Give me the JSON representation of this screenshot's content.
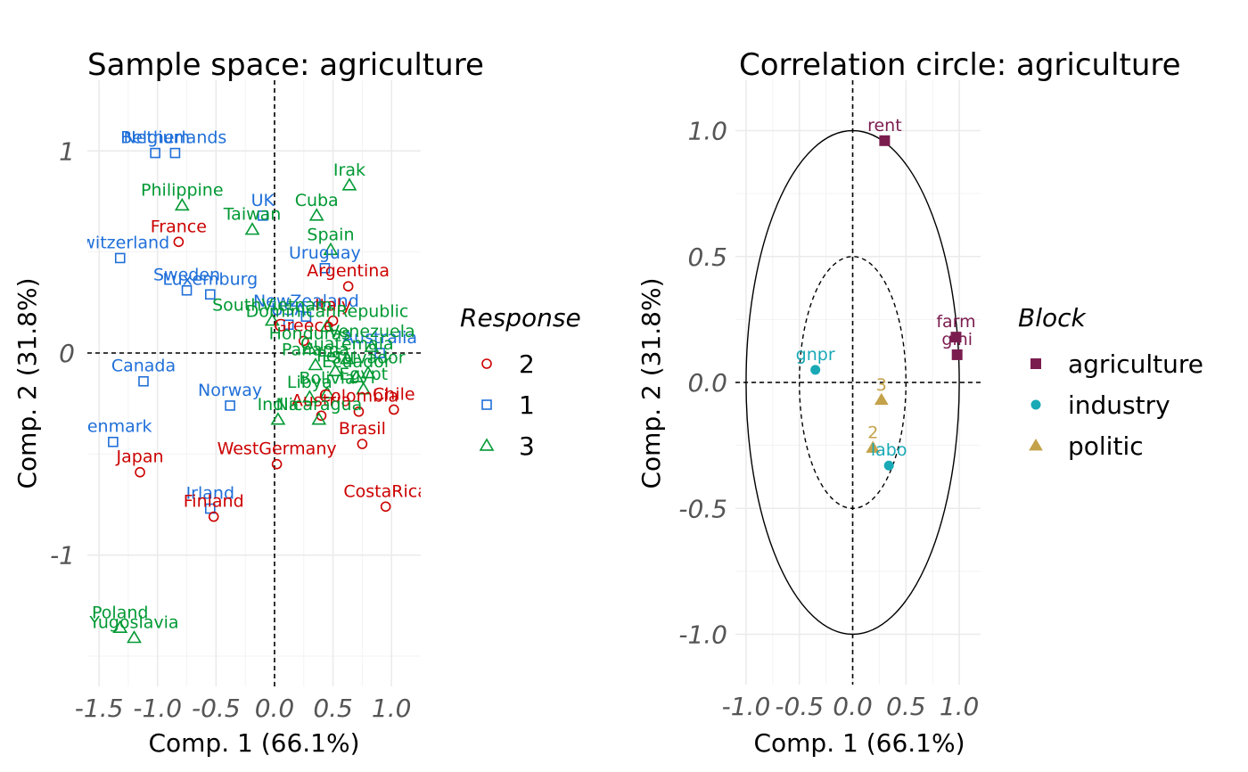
{
  "colors": {
    "response_2": "#cc0000",
    "response_1": "#1f6fd9",
    "response_3": "#009933",
    "agriculture": "#7b1c4f",
    "industry": "#19a9b6",
    "politic": "#c4a24a"
  },
  "chart_data": [
    {
      "type": "scatter",
      "title": "Sample space: agriculture",
      "xlabel": "Comp. 1 (66.1%)",
      "ylabel": "Comp. 2 (31.8%)",
      "xlim": [
        -1.6,
        1.25
      ],
      "ylim": [
        -1.65,
        1.35
      ],
      "xticks": [
        -1.5,
        -1.0,
        -0.5,
        0.0,
        0.5,
        1.0
      ],
      "xtick_labels": [
        "-1.5",
        "-1.0",
        "-0.5",
        "0.0",
        "0.5",
        "1.0"
      ],
      "yticks": [
        -1,
        0,
        1
      ],
      "ytick_labels": [
        "-1",
        "0",
        "1"
      ],
      "grid": true,
      "reference_lines": {
        "x": 0,
        "y": 0
      },
      "legend": {
        "title": "Response",
        "placement": "right",
        "entries": [
          {
            "label": "2",
            "shape": "circle",
            "color_key": "response_2"
          },
          {
            "label": "1",
            "shape": "square",
            "color_key": "response_1"
          },
          {
            "label": "3",
            "shape": "triangle",
            "color_key": "response_3"
          }
        ]
      },
      "points": [
        {
          "label": "Belgium",
          "x": -1.02,
          "y": 0.99,
          "group": "1"
        },
        {
          "label": "Netherlands",
          "x": -0.85,
          "y": 0.99,
          "group": "1"
        },
        {
          "label": "Switzerland",
          "x": -1.32,
          "y": 0.47,
          "group": "1"
        },
        {
          "label": "Sweden",
          "x": -0.75,
          "y": 0.31,
          "group": "1"
        },
        {
          "label": "Luxemburg",
          "x": -0.55,
          "y": 0.29,
          "group": "1"
        },
        {
          "label": "Canada",
          "x": -1.12,
          "y": -0.14,
          "group": "1"
        },
        {
          "label": "Norway",
          "x": -0.38,
          "y": -0.26,
          "group": "1"
        },
        {
          "label": "Denmark",
          "x": -1.38,
          "y": -0.44,
          "group": "1"
        },
        {
          "label": "Irland",
          "x": -0.55,
          "y": -0.77,
          "group": "1"
        },
        {
          "label": "UK",
          "x": -0.1,
          "y": 0.68,
          "group": "1"
        },
        {
          "label": "Uruguay",
          "x": 0.43,
          "y": 0.42,
          "group": "1"
        },
        {
          "label": "USA",
          "x": 0.12,
          "y": 0.14,
          "group": "1"
        },
        {
          "label": "NewZealand",
          "x": 0.27,
          "y": 0.18,
          "group": "1"
        },
        {
          "label": "Australia",
          "x": 0.9,
          "y": 0.0,
          "group": "1"
        },
        {
          "label": "France",
          "x": -0.82,
          "y": 0.55,
          "group": "2"
        },
        {
          "label": "Japan",
          "x": -1.15,
          "y": -0.59,
          "group": "2"
        },
        {
          "label": "Finland",
          "x": -0.52,
          "y": -0.81,
          "group": "2"
        },
        {
          "label": "WestGermany",
          "x": 0.02,
          "y": -0.55,
          "group": "2"
        },
        {
          "label": "Argentina",
          "x": 0.63,
          "y": 0.33,
          "group": "2"
        },
        {
          "label": "CostaRica",
          "x": 0.95,
          "y": -0.76,
          "group": "2"
        },
        {
          "label": "Brasil",
          "x": 0.75,
          "y": -0.45,
          "group": "2"
        },
        {
          "label": "Chile",
          "x": 1.02,
          "y": -0.28,
          "group": "2"
        },
        {
          "label": "Greece",
          "x": 0.25,
          "y": 0.06,
          "group": "2"
        },
        {
          "label": "Austria",
          "x": 0.4,
          "y": -0.31,
          "group": "2"
        },
        {
          "label": "Colombia",
          "x": 0.72,
          "y": -0.29,
          "group": "2"
        },
        {
          "label": "Italy",
          "x": 0.5,
          "y": 0.16,
          "group": "2"
        },
        {
          "label": "Irak",
          "x": 0.64,
          "y": 0.83,
          "group": "3"
        },
        {
          "label": "Cuba",
          "x": 0.36,
          "y": 0.68,
          "group": "3"
        },
        {
          "label": "Philippine",
          "x": -0.79,
          "y": 0.73,
          "group": "3"
        },
        {
          "label": "Taiwan",
          "x": -0.19,
          "y": 0.61,
          "group": "3"
        },
        {
          "label": "Spain",
          "x": 0.48,
          "y": 0.51,
          "group": "3"
        },
        {
          "label": "SouthVietnam",
          "x": -0.02,
          "y": 0.16,
          "group": "3"
        },
        {
          "label": "DominicanRepublic",
          "x": 0.45,
          "y": 0.13,
          "group": "3"
        },
        {
          "label": "Honduras",
          "x": 0.3,
          "y": 0.02,
          "group": "3"
        },
        {
          "label": "Venezuela",
          "x": 0.83,
          "y": 0.03,
          "group": "3"
        },
        {
          "label": "Guatemala",
          "x": 0.62,
          "y": -0.03,
          "group": "3"
        },
        {
          "label": "Panama",
          "x": 0.35,
          "y": -0.06,
          "group": "3"
        },
        {
          "label": "Ecuador",
          "x": 0.7,
          "y": -0.12,
          "group": "3"
        },
        {
          "label": "Peru",
          "x": 0.52,
          "y": -0.09,
          "group": "3"
        },
        {
          "label": "Salvador",
          "x": 0.8,
          "y": -0.1,
          "group": "3"
        },
        {
          "label": "Bolivia",
          "x": 0.45,
          "y": -0.2,
          "group": "3"
        },
        {
          "label": "Nicaragua",
          "x": 0.38,
          "y": -0.33,
          "group": "3"
        },
        {
          "label": "Libya",
          "x": 0.3,
          "y": -0.22,
          "group": "3"
        },
        {
          "label": "India",
          "x": 0.03,
          "y": -0.33,
          "group": "3"
        },
        {
          "label": "Egypt",
          "x": 0.76,
          "y": -0.18,
          "group": "3"
        },
        {
          "label": "Poland",
          "x": -1.32,
          "y": -1.36,
          "group": "3"
        },
        {
          "label": "Yugoslavia",
          "x": -1.2,
          "y": -1.41,
          "group": "3"
        }
      ]
    },
    {
      "type": "scatter",
      "title": "Correlation circle: agriculture",
      "xlabel": "Comp. 1 (66.1%)",
      "ylabel": "Comp. 2 (31.8%)",
      "xlim": [
        -1.1,
        1.2
      ],
      "ylim": [
        -1.2,
        1.2
      ],
      "xticks": [
        -1.0,
        -0.5,
        0.0,
        0.5,
        1.0
      ],
      "xtick_labels": [
        "-1.0",
        "-0.5",
        "0.0",
        "0.5",
        "1.0"
      ],
      "yticks": [
        -1.0,
        -0.5,
        0.0,
        0.5,
        1.0
      ],
      "ytick_labels": [
        "-1.0",
        "-0.5",
        "0.0",
        "0.5",
        "1.0"
      ],
      "grid": true,
      "reference_lines": {
        "x": 0,
        "y": 0
      },
      "circles": [
        {
          "radius": 1.0,
          "style": "solid"
        },
        {
          "radius": 0.5,
          "style": "dashed"
        }
      ],
      "legend": {
        "title": "Block",
        "placement": "right",
        "entries": [
          {
            "label": "agriculture",
            "shape": "square",
            "color_key": "agriculture"
          },
          {
            "label": "industry",
            "shape": "circle",
            "color_key": "industry"
          },
          {
            "label": "politic",
            "shape": "triangle",
            "color_key": "politic"
          }
        ]
      },
      "points": [
        {
          "label": "rent",
          "x": 0.3,
          "y": 0.96,
          "group": "agriculture"
        },
        {
          "label": "farm",
          "x": 0.97,
          "y": 0.18,
          "group": "agriculture"
        },
        {
          "label": "gini",
          "x": 0.98,
          "y": 0.11,
          "group": "agriculture"
        },
        {
          "label": "gnpr",
          "x": -0.35,
          "y": 0.05,
          "group": "industry"
        },
        {
          "label": "labo",
          "x": 0.34,
          "y": -0.33,
          "group": "industry"
        },
        {
          "label": "3",
          "x": 0.27,
          "y": -0.07,
          "group": "politic"
        },
        {
          "label": "2",
          "x": 0.19,
          "y": -0.26,
          "group": "politic"
        }
      ]
    }
  ]
}
